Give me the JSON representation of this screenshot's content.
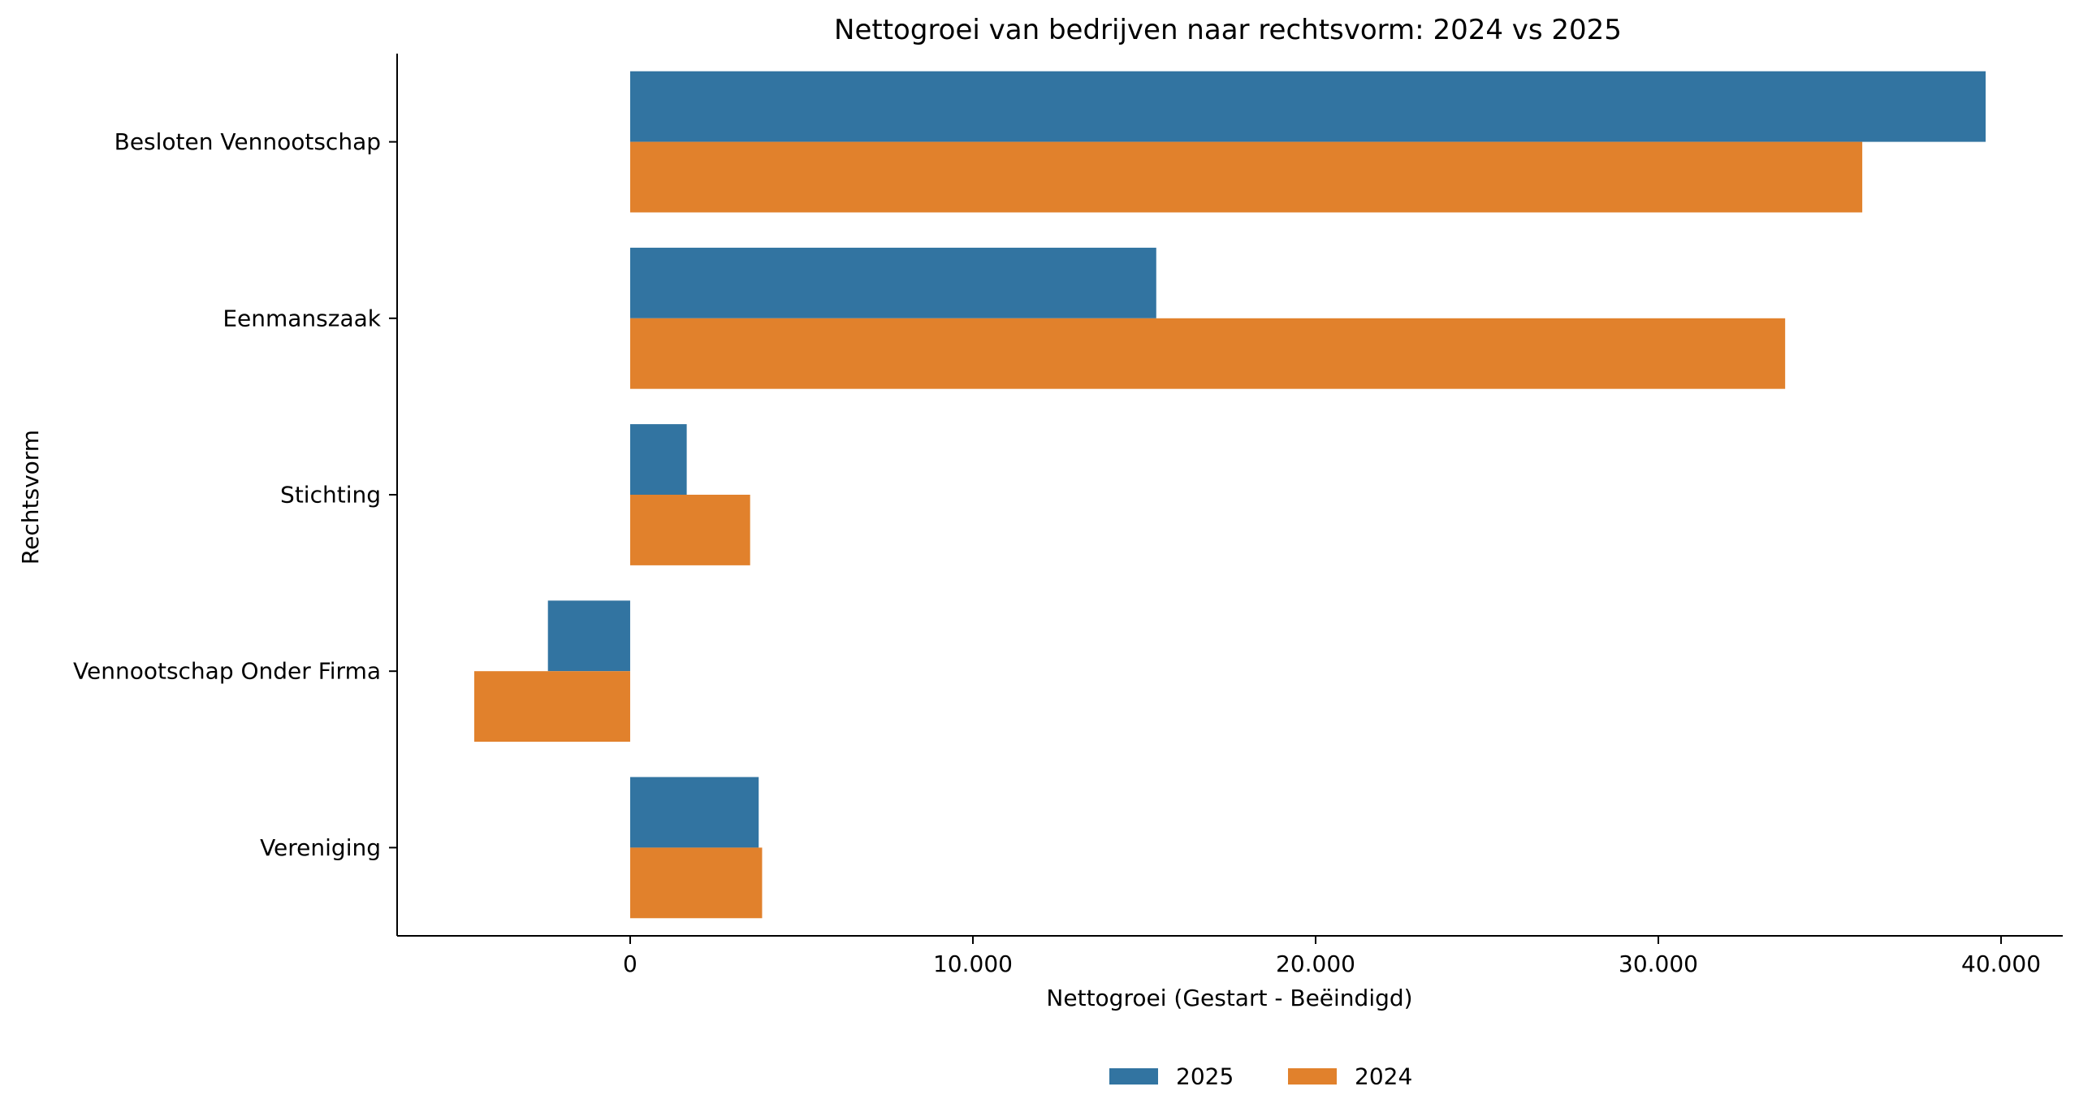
{
  "chart_data": {
    "type": "bar",
    "orientation": "horizontal",
    "title": "Nettogroei van bedrijven naar rechtsvorm: 2024 vs 2025",
    "xlabel": "Nettogroei (Gestart - Beëindigd)",
    "ylabel": "Rechtsvorm",
    "xlim": [
      -6800,
      41800
    ],
    "xticks": [
      0,
      10000,
      20000,
      30000,
      40000
    ],
    "xtick_labels": [
      "0",
      "10.000",
      "20.000",
      "30.000",
      "40.000"
    ],
    "categories": [
      "Besloten Vennootschap",
      "Eenmanszaak",
      "Stichting",
      "Vennootschap Onder Firma",
      "Vereniging"
    ],
    "series": [
      {
        "name": "2025",
        "color": "#3274a1",
        "values": [
          39550,
          15350,
          1650,
          -2400,
          3750
        ]
      },
      {
        "name": "2024",
        "color": "#e1812c",
        "values": [
          35950,
          33700,
          3500,
          -4550,
          3850
        ]
      }
    ],
    "legend": {
      "position": "bottom-center",
      "entries": [
        "2025",
        "2024"
      ]
    },
    "grid": false
  }
}
